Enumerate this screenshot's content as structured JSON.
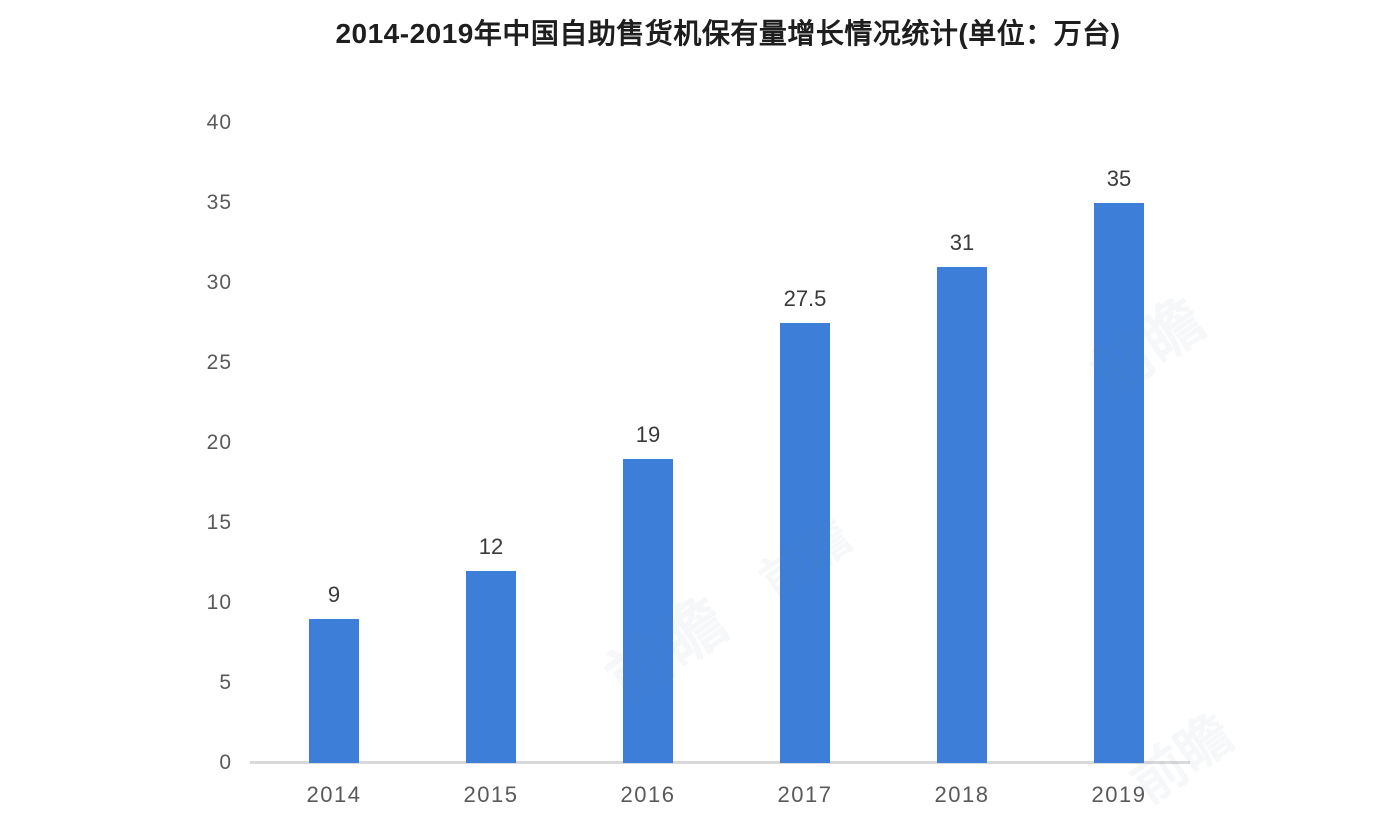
{
  "chart_data": {
    "type": "bar",
    "title": "2014-2019年中国自助售货机保有量增长情况统计(单位：万台)",
    "categories": [
      "2014",
      "2015",
      "2016",
      "2017",
      "2018",
      "2019"
    ],
    "values": [
      9,
      12,
      19,
      27.5,
      31,
      35
    ],
    "value_labels": [
      "9",
      "12",
      "19",
      "27.5",
      "31",
      "35"
    ],
    "xlabel": "",
    "ylabel": "",
    "ylim": [
      0,
      40
    ],
    "yticks": [
      0,
      5,
      10,
      15,
      20,
      25,
      30,
      35,
      40
    ],
    "grid": false,
    "legend_position": "none",
    "colors": {
      "bar": "#3d7fd8",
      "axis_line": "#d9d9d9",
      "title_text": "#1e1e1e",
      "tick_text": "#595959",
      "value_text": "#3a3a3a"
    },
    "watermark_text": "前瞻"
  }
}
